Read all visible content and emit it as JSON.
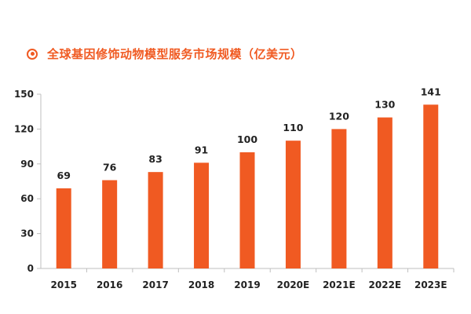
{
  "chart_data": {
    "type": "bar",
    "title": "全球基因修饰动物模型服务市场规模（亿美元）",
    "categories": [
      "2015",
      "2016",
      "2017",
      "2018",
      "2019",
      "2020E",
      "2021E",
      "2022E",
      "2023E"
    ],
    "values": [
      69,
      76,
      83,
      91,
      100,
      110,
      120,
      130,
      141
    ],
    "data_labels": [
      "69",
      "76",
      "83",
      "91",
      "100",
      "110",
      "120",
      "130",
      "141"
    ],
    "yticks": [
      "0",
      "30",
      "60",
      "90",
      "120",
      "150"
    ],
    "ylim": [
      0,
      150
    ],
    "xlabel": "",
    "ylabel": "",
    "grid": false,
    "legend": "none",
    "colors": {
      "bar": "#f05a22",
      "accent": "#f05a22",
      "axis": "#bfbfbf",
      "text": "#222222"
    }
  },
  "icons": {
    "title_bullet": "circle-bullet-icon"
  }
}
